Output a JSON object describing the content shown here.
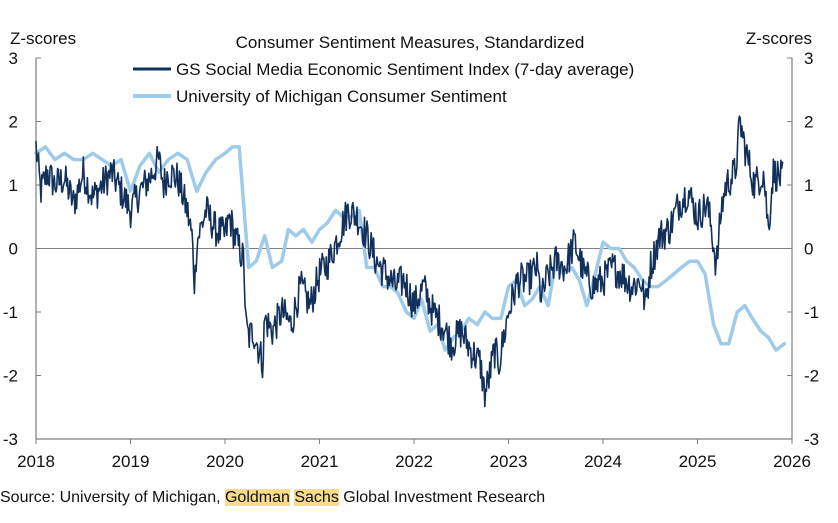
{
  "chart_data": {
    "type": "line",
    "title": "Consumer Sentiment Measures, Standardized",
    "ylabel_left": "Z-scores",
    "ylabel_right": "Z-scores",
    "ylim": [
      -3,
      3
    ],
    "yticks": [
      3,
      2,
      1,
      0,
      -1,
      -2,
      -3
    ],
    "xlim": [
      2018,
      2026
    ],
    "xticks": [
      "2018",
      "2019",
      "2020",
      "2021",
      "2022",
      "2023",
      "2024",
      "2025",
      "2026"
    ],
    "zero_line": true,
    "legend_position": "top-center",
    "colors": {
      "gs": "#12305c",
      "umich": "#9fcbea",
      "axis": "#7f7f7f",
      "zero": "#7f7f7f"
    },
    "series": [
      {
        "name": "GS Social Media Economic Sentiment Index (7-day average)",
        "color": "#12305c",
        "style": "volatile",
        "x": [
          2018.0,
          2018.05,
          2018.12,
          2018.2,
          2018.3,
          2018.4,
          2018.5,
          2018.6,
          2018.7,
          2018.8,
          2018.9,
          2019.0,
          2019.1,
          2019.2,
          2019.3,
          2019.35,
          2019.4,
          2019.5,
          2019.6,
          2019.65,
          2019.68,
          2019.7,
          2019.8,
          2019.9,
          2020.0,
          2020.05,
          2020.1,
          2020.2,
          2020.22,
          2020.25,
          2020.3,
          2020.4,
          2020.42,
          2020.5,
          2020.6,
          2020.7,
          2020.8,
          2020.9,
          2021.0,
          2021.1,
          2021.2,
          2021.3,
          2021.4,
          2021.5,
          2021.6,
          2021.7,
          2021.8,
          2021.9,
          2022.0,
          2022.1,
          2022.2,
          2022.3,
          2022.4,
          2022.5,
          2022.6,
          2022.7,
          2022.75,
          2022.8,
          2022.85,
          2022.9,
          2023.0,
          2023.1,
          2023.2,
          2023.3,
          2023.35,
          2023.4,
          2023.5,
          2023.6,
          2023.7,
          2023.8,
          2023.9,
          2024.0,
          2024.1,
          2024.2,
          2024.3,
          2024.4,
          2024.45,
          2024.5,
          2024.6,
          2024.7,
          2024.8,
          2024.9,
          2025.0,
          2025.1,
          2025.15,
          2025.2,
          2025.25,
          2025.3,
          2025.4,
          2025.45,
          2025.5,
          2025.6,
          2025.7,
          2025.75,
          2025.8,
          2025.9
        ],
        "values": [
          1.6,
          0.9,
          1.2,
          1.0,
          1.1,
          0.7,
          1.2,
          0.8,
          1.0,
          1.2,
          0.9,
          0.6,
          0.9,
          1.1,
          1.4,
          1.0,
          1.2,
          1.1,
          0.6,
          0.2,
          -0.6,
          0.1,
          0.6,
          0.3,
          0.2,
          0.5,
          0.2,
          -0.2,
          -1.2,
          -1.4,
          -1.3,
          -1.8,
          -1.1,
          -1.3,
          -1.0,
          -1.2,
          -0.6,
          -0.9,
          -0.4,
          -0.2,
          0.2,
          0.6,
          0.5,
          0.2,
          -0.2,
          -0.4,
          -0.6,
          -0.5,
          -0.9,
          -0.6,
          -1.0,
          -1.2,
          -1.5,
          -1.3,
          -1.6,
          -1.8,
          -2.3,
          -2.0,
          -1.6,
          -1.8,
          -1.0,
          -0.5,
          -0.5,
          -0.3,
          -0.8,
          -0.5,
          -0.2,
          -0.3,
          0.1,
          -0.4,
          -0.6,
          -0.5,
          -0.3,
          -0.4,
          -0.6,
          -0.5,
          -0.9,
          -0.3,
          0.2,
          0.3,
          0.7,
          0.9,
          0.5,
          0.7,
          0.3,
          -0.3,
          0.6,
          1.0,
          1.2,
          2.0,
          1.6,
          1.0,
          1.2,
          0.3,
          1.2,
          1.1
        ]
      },
      {
        "name": "University of Michigan Consumer Sentiment",
        "color": "#9fcbea",
        "style": "smooth",
        "x": [
          2018.0,
          2018.1,
          2018.2,
          2018.3,
          2018.4,
          2018.5,
          2018.6,
          2018.7,
          2018.8,
          2018.9,
          2019.0,
          2019.1,
          2019.2,
          2019.3,
          2019.4,
          2019.5,
          2019.6,
          2019.7,
          2019.8,
          2019.9,
          2020.0,
          2020.08,
          2020.15,
          2020.25,
          2020.33,
          2020.42,
          2020.5,
          2020.6,
          2020.67,
          2020.75,
          2020.83,
          2020.92,
          2021.0,
          2021.08,
          2021.17,
          2021.25,
          2021.33,
          2021.42,
          2021.5,
          2021.58,
          2021.67,
          2021.75,
          2021.83,
          2021.92,
          2022.0,
          2022.08,
          2022.17,
          2022.25,
          2022.33,
          2022.42,
          2022.5,
          2022.58,
          2022.67,
          2022.75,
          2022.83,
          2022.92,
          2023.0,
          2023.08,
          2023.17,
          2023.25,
          2023.33,
          2023.42,
          2023.5,
          2023.58,
          2023.67,
          2023.75,
          2023.83,
          2023.92,
          2024.0,
          2024.08,
          2024.17,
          2024.25,
          2024.33,
          2024.42,
          2024.5,
          2024.58,
          2024.67,
          2024.75,
          2024.83,
          2024.92,
          2025.0,
          2025.08,
          2025.17,
          2025.25,
          2025.33,
          2025.42,
          2025.5,
          2025.58,
          2025.67,
          2025.75,
          2025.83,
          2025.92
        ],
        "values": [
          1.5,
          1.6,
          1.4,
          1.5,
          1.4,
          1.4,
          1.5,
          1.4,
          1.3,
          1.4,
          0.9,
          1.3,
          1.5,
          1.2,
          1.4,
          1.5,
          1.4,
          0.9,
          1.2,
          1.4,
          1.5,
          1.6,
          1.6,
          -0.3,
          -0.2,
          0.2,
          -0.3,
          -0.2,
          0.3,
          0.2,
          0.3,
          0.1,
          0.3,
          0.4,
          0.6,
          0.5,
          0.5,
          0.6,
          -0.3,
          -0.3,
          -0.6,
          -0.6,
          -0.7,
          -1.0,
          -1.1,
          -0.8,
          -1.3,
          -1.2,
          -1.6,
          -1.4,
          -1.3,
          -1.1,
          -1.2,
          -1.0,
          -1.1,
          -1.1,
          -0.6,
          -0.5,
          -0.9,
          -0.8,
          -0.6,
          -0.9,
          -0.2,
          -0.4,
          -0.3,
          -0.5,
          -0.9,
          -0.4,
          0.1,
          0.0,
          0.0,
          -0.2,
          -0.3,
          -0.5,
          -0.6,
          -0.6,
          -0.5,
          -0.4,
          -0.3,
          -0.2,
          -0.2,
          -0.4,
          -1.2,
          -1.5,
          -1.5,
          -1.0,
          -0.9,
          -1.1,
          -1.3,
          -1.4,
          -1.6,
          -1.5
        ]
      }
    ]
  },
  "source": {
    "prefix": "Source: University of Michigan, ",
    "word1": "Goldman",
    "space": " ",
    "word2": "Sachs",
    "suffix": " Global Investment Research"
  }
}
